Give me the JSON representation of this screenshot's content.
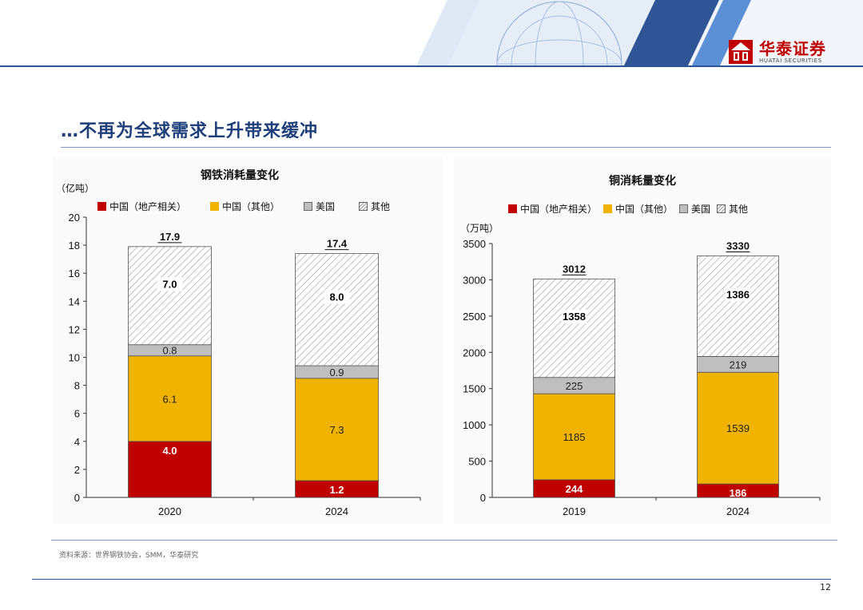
{
  "header": {
    "logo_cn": "华泰证券",
    "logo_en": "HUATAI SECURITIES"
  },
  "page_title": "…不再为全球需求上升带来缓冲",
  "colors": {
    "red": "#c00000",
    "yellow": "#f0b400",
    "gray": "#bfbfbf",
    "hatch": "#ffffff",
    "brand_blue": "#2f5597"
  },
  "legend_steel": [
    "中国（地产相关）",
    "中国（其他）",
    "美国",
    "其他"
  ],
  "legend_copper": [
    "中国（地产相关）",
    "中国（其他）",
    "美国",
    "其他"
  ],
  "chart_data": [
    {
      "type": "bar",
      "stacked": true,
      "title": "钢铁消耗量变化",
      "ylabel": "（亿吨）",
      "categories": [
        "2020",
        "2024"
      ],
      "ylim": [
        0,
        20
      ],
      "yticks": [
        0,
        2,
        4,
        6,
        8,
        10,
        12,
        14,
        16,
        18,
        20
      ],
      "series": [
        {
          "name": "中国（地产相关）",
          "values": [
            4.0,
            1.2
          ],
          "labels": [
            "4.0",
            "1.2"
          ]
        },
        {
          "name": "中国（其他）",
          "values": [
            6.1,
            7.3
          ],
          "labels": [
            "6.1",
            "7.3"
          ]
        },
        {
          "name": "美国",
          "values": [
            0.8,
            0.9
          ],
          "labels": [
            "0.8",
            "0.9"
          ]
        },
        {
          "name": "其他",
          "values": [
            7.0,
            8.0
          ],
          "labels": [
            "7.0",
            "8.0"
          ]
        }
      ],
      "totals": [
        "17.9",
        "17.4"
      ]
    },
    {
      "type": "bar",
      "stacked": true,
      "title": "铜消耗量变化",
      "ylabel": "（万吨）",
      "categories": [
        "2019",
        "2024"
      ],
      "ylim": [
        0,
        3500
      ],
      "yticks": [
        0,
        500,
        1000,
        1500,
        2000,
        2500,
        3000,
        3500
      ],
      "series": [
        {
          "name": "中国（地产相关）",
          "values": [
            244,
            186
          ],
          "labels": [
            "244",
            "186"
          ]
        },
        {
          "name": "中国（其他）",
          "values": [
            1185,
            1539
          ],
          "labels": [
            "1185",
            "1539"
          ]
        },
        {
          "name": "美国",
          "values": [
            225,
            219
          ],
          "labels": [
            "225",
            "219"
          ]
        },
        {
          "name": "其他",
          "values": [
            1358,
            1386
          ],
          "labels": [
            "1358",
            "1386"
          ]
        }
      ],
      "totals": [
        "3012",
        "3330"
      ]
    }
  ],
  "source": "资料来源：世界钢铁协会，SMM，华泰研究",
  "page_number": "12"
}
